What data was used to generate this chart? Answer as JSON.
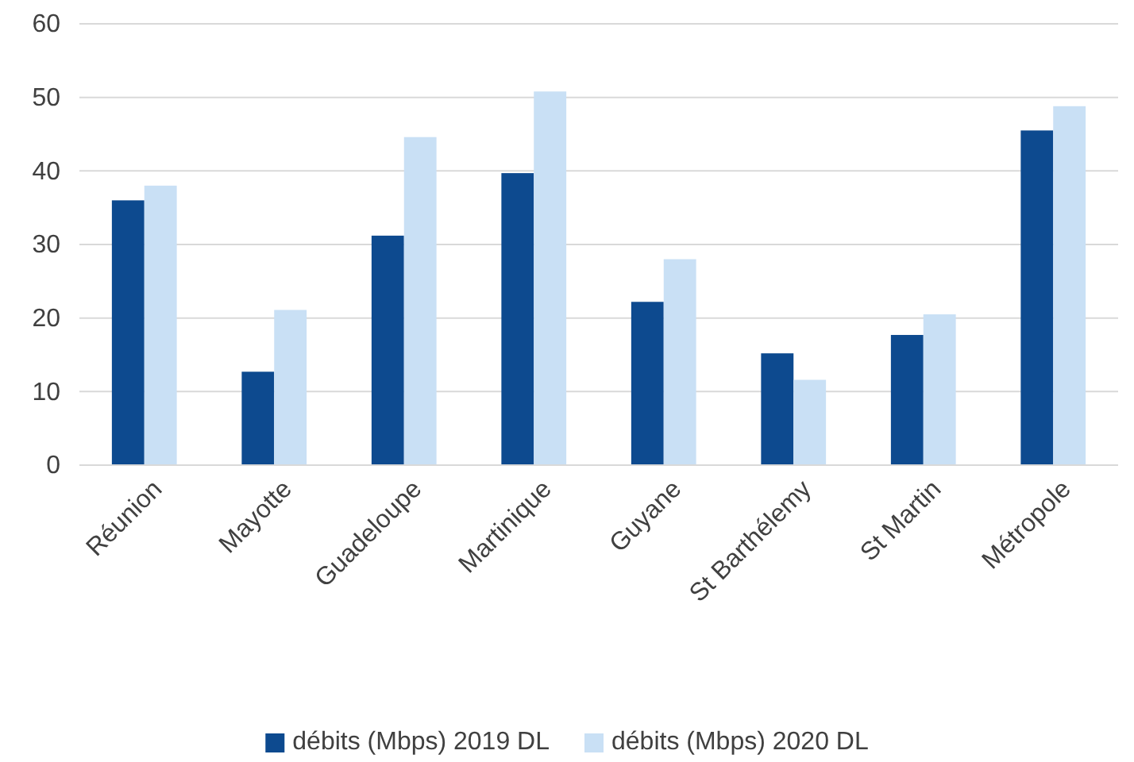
{
  "chart_data": {
    "type": "bar",
    "categories": [
      "Réunion",
      "Mayotte",
      "Guadeloupe",
      "Martinique",
      "Guyane",
      "St Barthélemy",
      "St Martin",
      "Métropole"
    ],
    "series": [
      {
        "name": "débits (Mbps) 2019 DL",
        "color": "#0d4a8f",
        "values": [
          36.0,
          12.7,
          31.2,
          39.7,
          22.2,
          15.2,
          17.7,
          45.5
        ]
      },
      {
        "name": "débits (Mbps) 2020 DL",
        "color": "#c9e0f5",
        "values": [
          38.0,
          21.1,
          44.6,
          50.8,
          28.0,
          11.6,
          20.5,
          48.8
        ]
      }
    ],
    "ylim": [
      0,
      60
    ],
    "yticks": [
      0,
      10,
      20,
      30,
      40,
      50,
      60
    ],
    "grid": "y",
    "legend": "bottom"
  }
}
